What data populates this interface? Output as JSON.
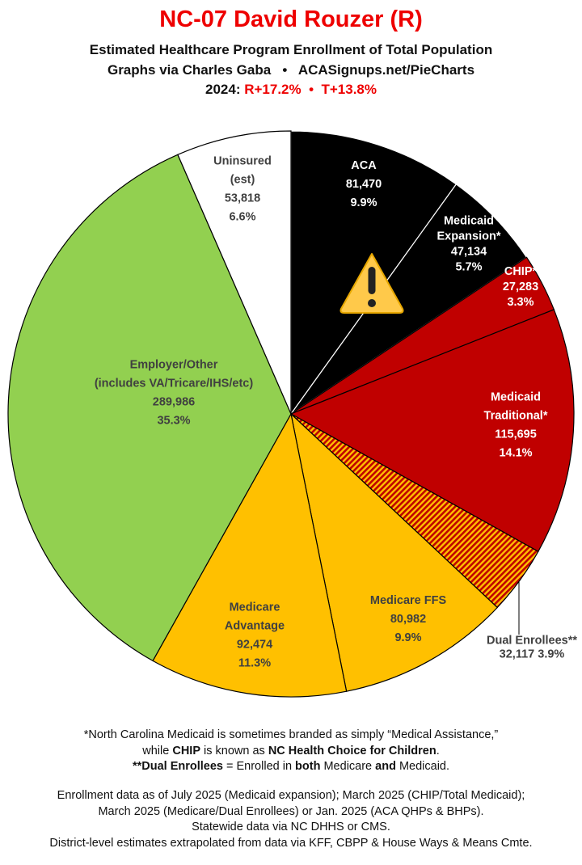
{
  "header": {
    "title": "NC-07 David Rouzer (R)",
    "subtitle": "Estimated Healthcare Program Enrollment of Total Population",
    "credit": "Graphs via Charles Gaba   •   ACASignups.net/PieCharts",
    "year_label": "2024:",
    "margins": "R+17.2%  •  T+13.8%"
  },
  "chart_data": {
    "type": "pie",
    "start": "12 o'clock, clockwise",
    "slices": [
      {
        "name": "ACA",
        "lines": [
          "ACA",
          "81,470",
          "9.9%"
        ],
        "value": 81470,
        "percent": 9.9,
        "color": "#000000"
      },
      {
        "name": "Medicaid Expansion*",
        "lines": [
          "Medicaid",
          "Expansion*",
          "47,134",
          "5.7%"
        ],
        "value": 47134,
        "percent": 5.7,
        "color": "#000000"
      },
      {
        "name": "CHIP*",
        "lines": [
          "CHIP*",
          "27,283",
          "3.3%"
        ],
        "value": 27283,
        "percent": 3.3,
        "color": "#c00000"
      },
      {
        "name": "Medicaid Traditional*",
        "lines": [
          "Medicaid",
          "Traditional*",
          "115,695",
          "14.1%"
        ],
        "value": 115695,
        "percent": 14.1,
        "color": "#c00000"
      },
      {
        "name": "Dual Enrollees**",
        "lines": [
          "Dual Enrollees**",
          "32,117 3.9%"
        ],
        "value": 32117,
        "percent": 3.9,
        "color": "#e05a00",
        "pattern": "hatched"
      },
      {
        "name": "Medicare FFS",
        "lines": [
          "Medicare FFS",
          "80,982",
          "9.9%"
        ],
        "value": 80982,
        "percent": 9.9,
        "color": "#ffc000"
      },
      {
        "name": "Medicare Advantage",
        "lines": [
          "Medicare",
          "Advantage",
          "92,474",
          "11.3%"
        ],
        "value": 92474,
        "percent": 11.3,
        "color": "#ffc000"
      },
      {
        "name": "Employer/Other",
        "lines": [
          "Employer/Other",
          "(includes VA/Tricare/IHS/etc)",
          "289,986",
          "35.3%"
        ],
        "value": 289986,
        "percent": 35.3,
        "color": "#92d050"
      },
      {
        "name": "Uninsured (est)",
        "lines": [
          "Uninsured",
          "(est)",
          "53,818",
          "6.6%"
        ],
        "value": 53818,
        "percent": 6.6,
        "color": "#ffffff"
      }
    ],
    "icon": "warning-triangle-icon"
  },
  "footer": {
    "note1_a": "*North Carolina Medicaid is sometimes branded as simply “Medical Assistance,”",
    "note2_a": "while ",
    "note2_b": "CHIP",
    "note2_c": " is known as ",
    "note2_d": "NC Health Choice for Children",
    "note2_e": ".",
    "note3_a": "**Dual Enrollees",
    "note3_b": " = Enrolled in ",
    "note3_c": "both",
    "note3_d": " Medicare ",
    "note3_e": "and",
    "note3_f": " Medicaid.",
    "src1": "Enrollment data as of July 2025 (Medicaid expansion); March 2025 (CHIP/Total Medicaid);",
    "src2": "March 2025 (Medicare/Dual Enrollees) or Jan. 2025 (ACA QHPs & BHPs).",
    "src3": "Statewide data via NC DHHS or CMS.",
    "src4": "District-level estimates extrapolated from data via KFF, CBPP & House Ways & Means Cmte."
  }
}
